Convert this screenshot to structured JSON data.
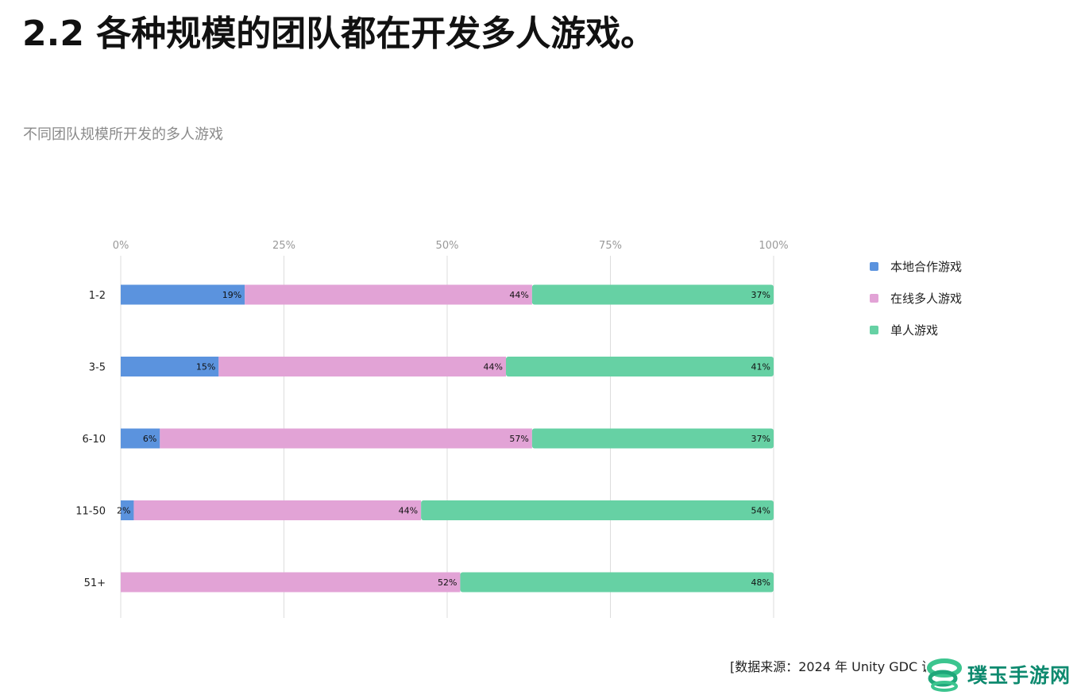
{
  "title": "2.2 各种规模的团队都在开发多人游戏。",
  "subtitle": "不同团队规模所开发的多人游戏",
  "source": "[数据来源：2024 年 Unity GDC 调",
  "watermark": "璞玉手游网",
  "colors": {
    "local_coop": "#5b93de",
    "online_multi": "#e2a3d6",
    "single": "#66d1a4",
    "grid": "#dddddd",
    "tick_text": "#999999"
  },
  "chart_data": {
    "type": "bar",
    "orientation": "horizontal",
    "stacked": true,
    "categories": [
      "1-2",
      "3-5",
      "6-10",
      "11-50",
      "51+"
    ],
    "series": [
      {
        "name": "本地合作游戏",
        "color": "#5b93de",
        "values": [
          19,
          15,
          6,
          2,
          0
        ]
      },
      {
        "name": "在线多人游戏",
        "color": "#e2a3d6",
        "values": [
          44,
          44,
          57,
          44,
          52
        ]
      },
      {
        "name": "单人游戏",
        "color": "#66d1a4",
        "values": [
          37,
          41,
          37,
          54,
          48
        ]
      }
    ],
    "xlim": [
      0,
      100
    ],
    "xticks": [
      "0%",
      "25%",
      "50%",
      "75%",
      "100%"
    ],
    "grid": true,
    "legend_position": "right"
  }
}
